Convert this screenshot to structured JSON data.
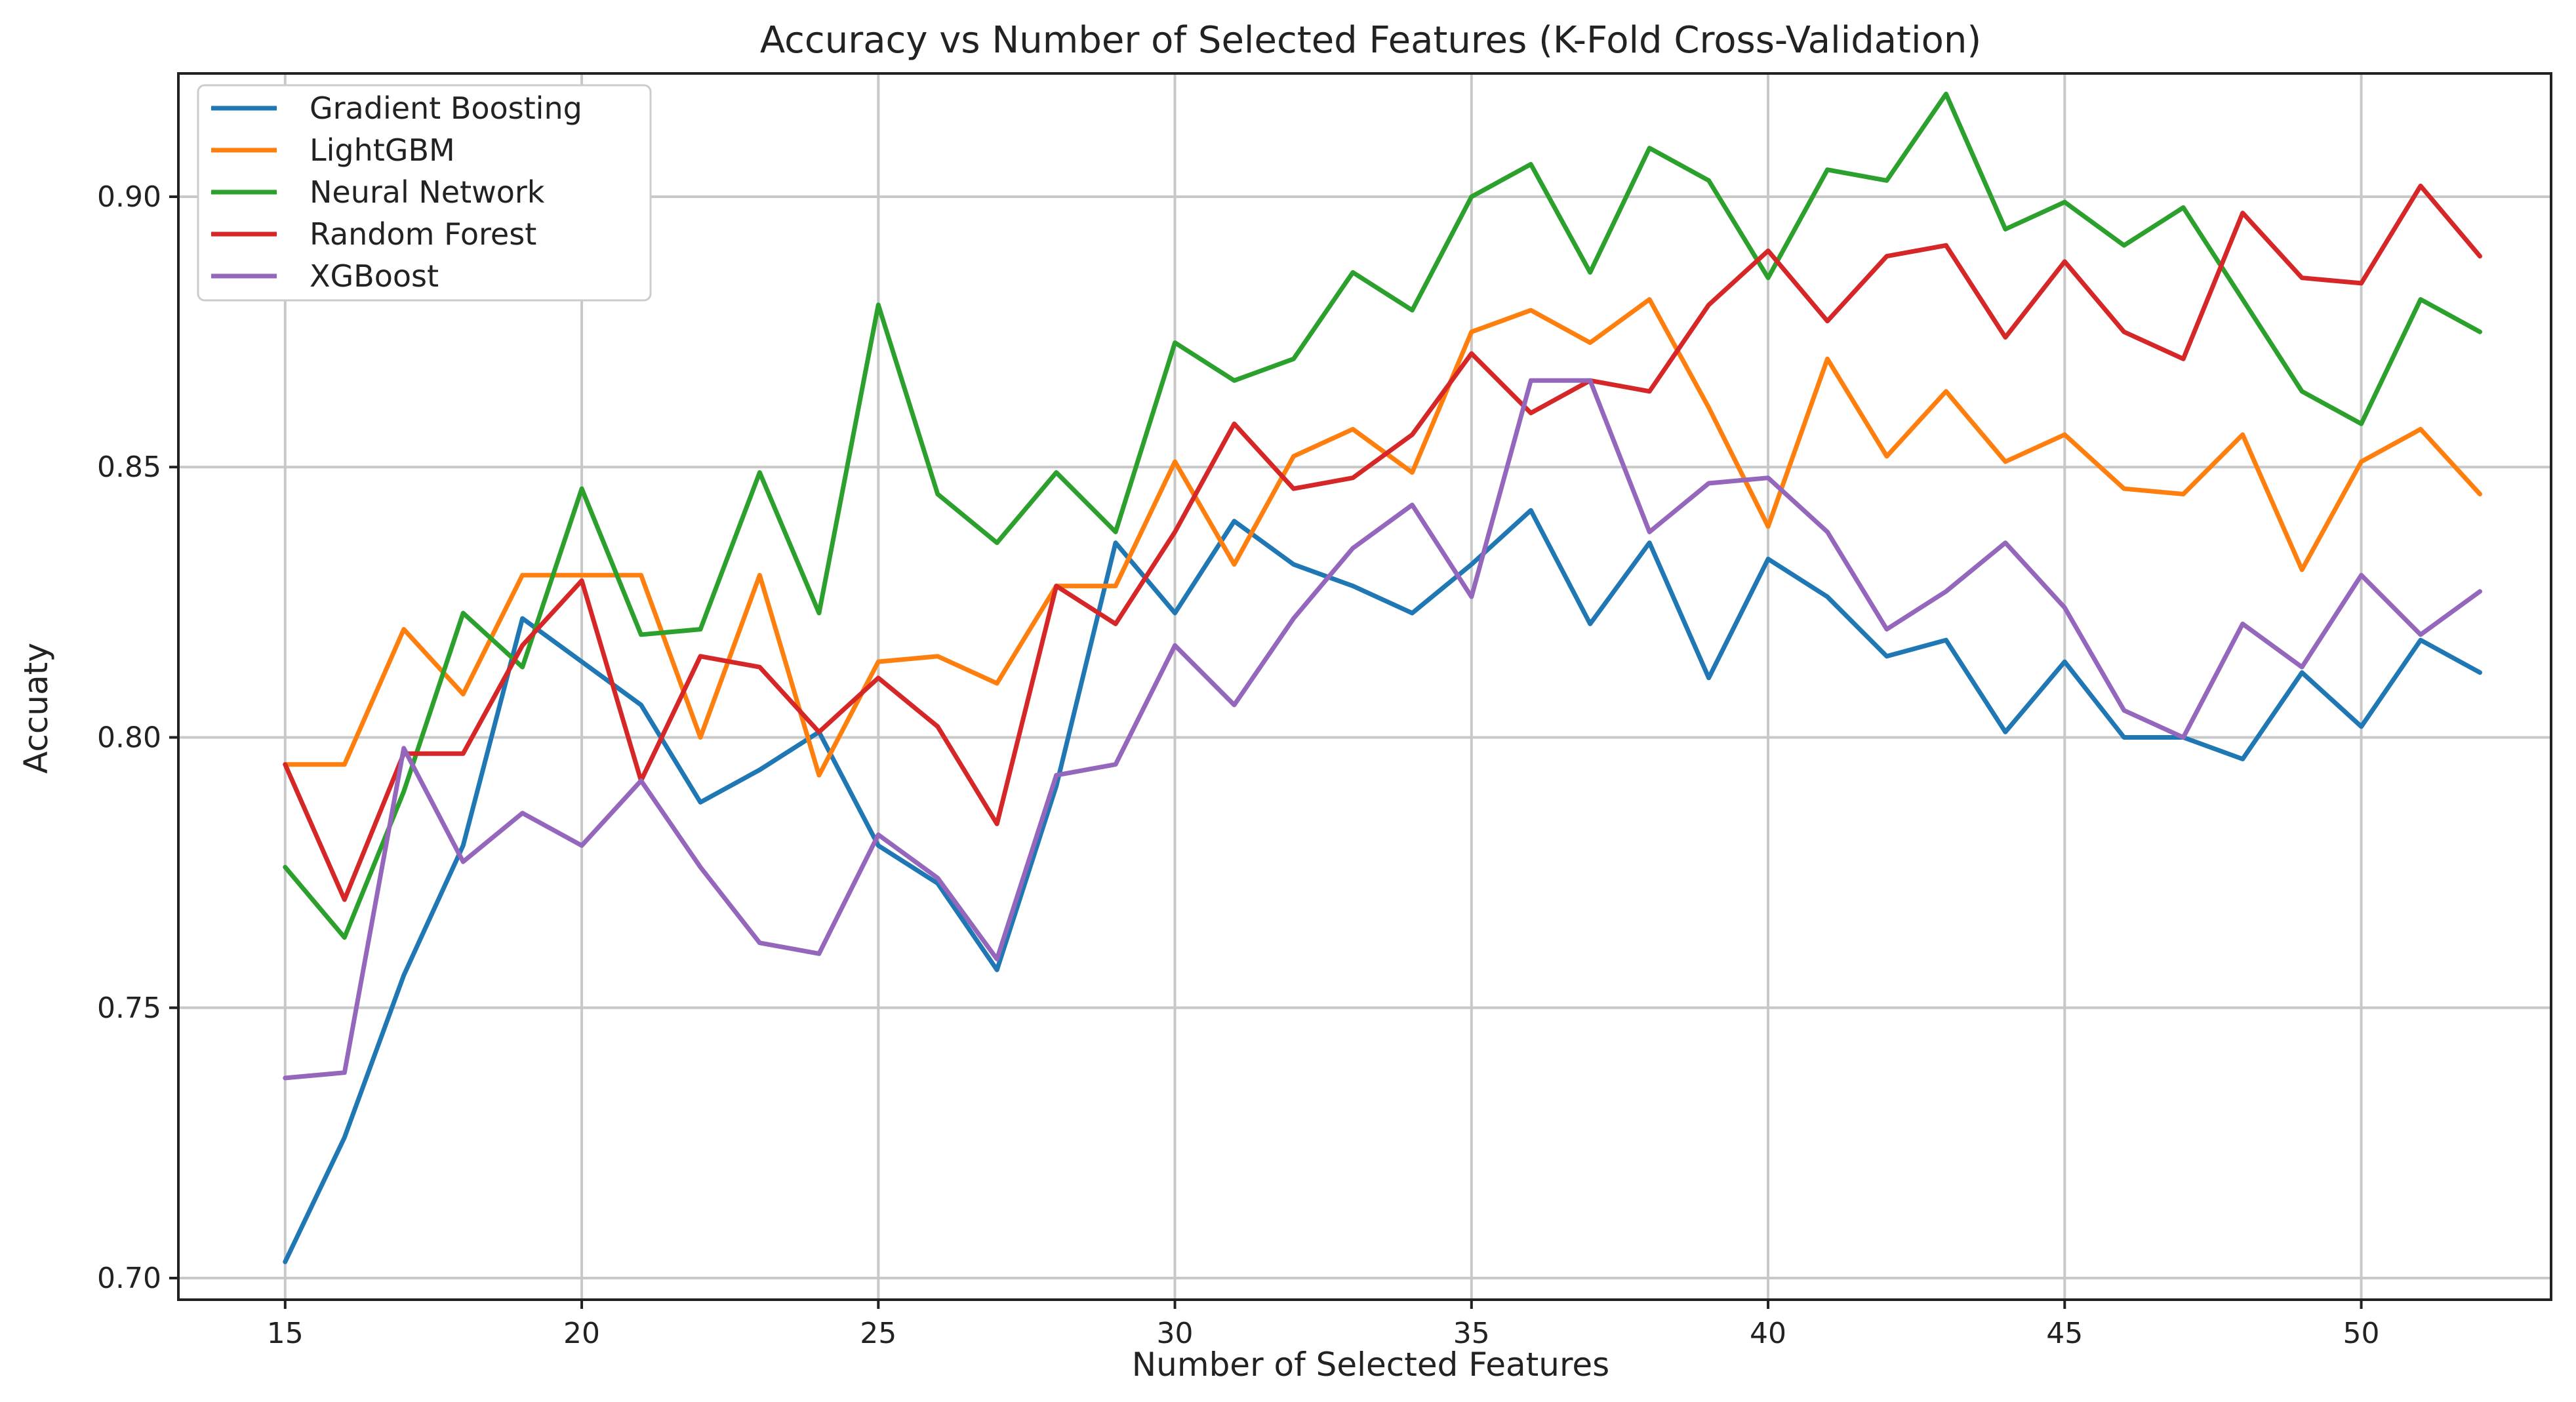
{
  "chart_data": {
    "type": "line",
    "title": "Accuracy vs Number of Selected Features (K-Fold Cross-Validation)",
    "xlabel": "Number of Selected Features",
    "ylabel": "Accuaty",
    "xlim": [
      13.2,
      53.2
    ],
    "ylim": [
      0.696,
      0.9228
    ],
    "xticks": [
      15,
      20,
      25,
      30,
      35,
      40,
      45,
      50
    ],
    "yticks": [
      0.7,
      0.75,
      0.8,
      0.85,
      0.9
    ],
    "ytick_labels": [
      "0.70",
      "0.75",
      "0.80",
      "0.85",
      "0.90"
    ],
    "grid": true,
    "legend_position": "top-left",
    "x": [
      15,
      16,
      17,
      18,
      19,
      20,
      21,
      22,
      23,
      24,
      25,
      26,
      27,
      28,
      29,
      30,
      31,
      32,
      33,
      34,
      35,
      36,
      37,
      38,
      39,
      40,
      41,
      42,
      43,
      44,
      45,
      46,
      47,
      48,
      49,
      50,
      51,
      52
    ],
    "series": [
      {
        "name": "Gradient Boosting",
        "color": "#1f77b4",
        "values": [
          0.703,
          0.726,
          0.756,
          0.78,
          0.822,
          0.814,
          0.806,
          0.788,
          0.794,
          0.801,
          0.78,
          0.773,
          0.757,
          0.791,
          0.836,
          0.823,
          0.84,
          0.832,
          0.828,
          0.823,
          0.832,
          0.842,
          0.821,
          0.836,
          0.811,
          0.833,
          0.826,
          0.815,
          0.818,
          0.801,
          0.814,
          0.8,
          0.8,
          0.796,
          0.812,
          0.802,
          0.818,
          0.812
        ]
      },
      {
        "name": "LightGBM",
        "color": "#ff7f0e",
        "values": [
          0.795,
          0.795,
          0.82,
          0.808,
          0.83,
          0.83,
          0.83,
          0.8,
          0.83,
          0.793,
          0.814,
          0.815,
          0.81,
          0.828,
          0.828,
          0.851,
          0.832,
          0.852,
          0.857,
          0.849,
          0.875,
          0.879,
          0.873,
          0.881,
          0.861,
          0.839,
          0.87,
          0.852,
          0.864,
          0.851,
          0.856,
          0.846,
          0.845,
          0.856,
          0.831,
          0.851,
          0.857,
          0.845
        ]
      },
      {
        "name": "Neural Network",
        "color": "#2ca02c",
        "values": [
          0.776,
          0.763,
          0.79,
          0.823,
          0.813,
          0.846,
          0.819,
          0.82,
          0.849,
          0.823,
          0.88,
          0.845,
          0.836,
          0.849,
          0.838,
          0.873,
          0.866,
          0.87,
          0.886,
          0.879,
          0.9,
          0.906,
          0.886,
          0.909,
          0.903,
          0.885,
          0.905,
          0.903,
          0.919,
          0.894,
          0.899,
          0.891,
          0.898,
          0.881,
          0.864,
          0.858,
          0.881,
          0.875
        ]
      },
      {
        "name": "Random Forest",
        "color": "#d62728",
        "values": [
          0.795,
          0.77,
          0.797,
          0.797,
          0.817,
          0.829,
          0.792,
          0.815,
          0.813,
          0.801,
          0.811,
          0.802,
          0.784,
          0.828,
          0.821,
          0.838,
          0.858,
          0.846,
          0.848,
          0.856,
          0.871,
          0.86,
          0.866,
          0.864,
          0.88,
          0.89,
          0.877,
          0.889,
          0.891,
          0.874,
          0.888,
          0.875,
          0.87,
          0.897,
          0.885,
          0.884,
          0.902,
          0.889
        ]
      },
      {
        "name": "XGBoost",
        "color": "#9467bd",
        "values": [
          0.737,
          0.738,
          0.798,
          0.777,
          0.786,
          0.78,
          0.792,
          0.776,
          0.762,
          0.76,
          0.782,
          0.774,
          0.759,
          0.793,
          0.795,
          0.817,
          0.806,
          0.822,
          0.835,
          0.843,
          0.826,
          0.866,
          0.866,
          0.838,
          0.847,
          0.848,
          0.838,
          0.82,
          0.827,
          0.836,
          0.824,
          0.805,
          0.8,
          0.821,
          0.813,
          0.83,
          0.819,
          0.827
        ]
      }
    ]
  }
}
